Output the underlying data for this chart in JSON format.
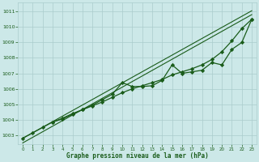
{
  "xlabel": "Graphe pression niveau de la mer (hPa)",
  "bg_color": "#cce8e8",
  "grid_color": "#aacccc",
  "line_color": "#1a5c1a",
  "text_color": "#1a5c1a",
  "xlim": [
    -0.5,
    23.5
  ],
  "ylim": [
    1002.4,
    1011.6
  ],
  "yticks": [
    1003,
    1004,
    1005,
    1006,
    1007,
    1008,
    1009,
    1010,
    1011
  ],
  "xticks": [
    0,
    1,
    2,
    3,
    4,
    5,
    6,
    7,
    8,
    9,
    10,
    11,
    12,
    13,
    14,
    15,
    16,
    17,
    18,
    19,
    20,
    21,
    22,
    23
  ],
  "series": [
    {
      "x": [
        0,
        23
      ],
      "y": [
        1002.5,
        1010.8
      ],
      "marker": null,
      "linewidth": 0.8,
      "linestyle": "-"
    },
    {
      "x": [
        0,
        1,
        2,
        3,
        4,
        5,
        6,
        7,
        8,
        9,
        10,
        11,
        12,
        13,
        14,
        15,
        16,
        17,
        18,
        19,
        20,
        21,
        22,
        23
      ],
      "y": [
        1002.8,
        1003.15,
        1003.5,
        1003.85,
        1004.1,
        1004.4,
        1004.65,
        1004.9,
        1005.15,
        1005.45,
        1005.75,
        1006.0,
        1006.2,
        1006.4,
        1006.6,
        1006.9,
        1007.1,
        1007.3,
        1007.55,
        1007.9,
        1008.4,
        1009.1,
        1009.9,
        1010.5
      ],
      "marker": "D",
      "markersize": 2.2,
      "linewidth": 0.9,
      "linestyle": "-"
    },
    {
      "x": [
        3,
        4,
        5,
        6,
        7,
        8,
        9,
        10,
        11,
        12,
        13,
        14,
        15,
        16,
        17,
        18,
        19,
        20,
        21,
        22,
        23
      ],
      "y": [
        1003.85,
        1004.05,
        1004.35,
        1004.65,
        1004.95,
        1005.3,
        1005.65,
        1006.4,
        1006.15,
        1006.15,
        1006.2,
        1006.55,
        1007.55,
        1007.0,
        1007.1,
        1007.2,
        1007.7,
        1007.55,
        1008.55,
        1009.0,
        1010.5
      ],
      "marker": "D",
      "markersize": 2.2,
      "linewidth": 0.9,
      "linestyle": "-"
    },
    {
      "x": [
        0,
        23
      ],
      "y": [
        1002.8,
        1011.05
      ],
      "marker": null,
      "linewidth": 0.8,
      "linestyle": "-"
    }
  ]
}
